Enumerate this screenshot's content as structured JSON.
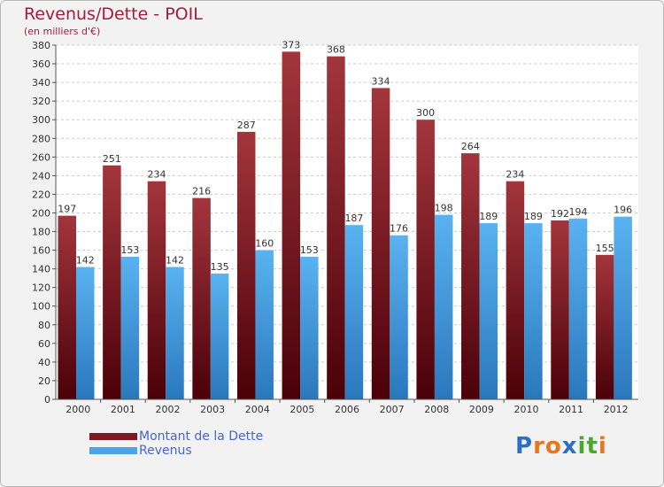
{
  "title": "Revenus/Dette - POIL",
  "subtitle": "(en milliers d'€)",
  "logo": {
    "letters": [
      "P",
      "r",
      "o",
      "x",
      "i",
      "t",
      "i"
    ],
    "colors": [
      "#2d6fc4",
      "#e8761c",
      "#e8761c",
      "#2d6fc4",
      "#4aa82e",
      "#4aa82e",
      "#e8761c"
    ]
  },
  "chart_data": {
    "type": "bar",
    "categories": [
      "2000",
      "2001",
      "2002",
      "2003",
      "2004",
      "2005",
      "2006",
      "2007",
      "2008",
      "2009",
      "2010",
      "2011",
      "2012"
    ],
    "series": [
      {
        "name": "Montant de la Dette",
        "color": "#7a1a22",
        "values": [
          197,
          251,
          234,
          216,
          287,
          373,
          368,
          334,
          300,
          264,
          234,
          192,
          155
        ]
      },
      {
        "name": "Revenus",
        "color": "#4da3e6",
        "values": [
          142,
          153,
          142,
          135,
          160,
          153,
          187,
          176,
          198,
          189,
          189,
          194,
          196
        ]
      }
    ],
    "ylim": [
      0,
      380
    ],
    "ytick_step": 20,
    "grid": true,
    "legend": "bottom-left"
  }
}
